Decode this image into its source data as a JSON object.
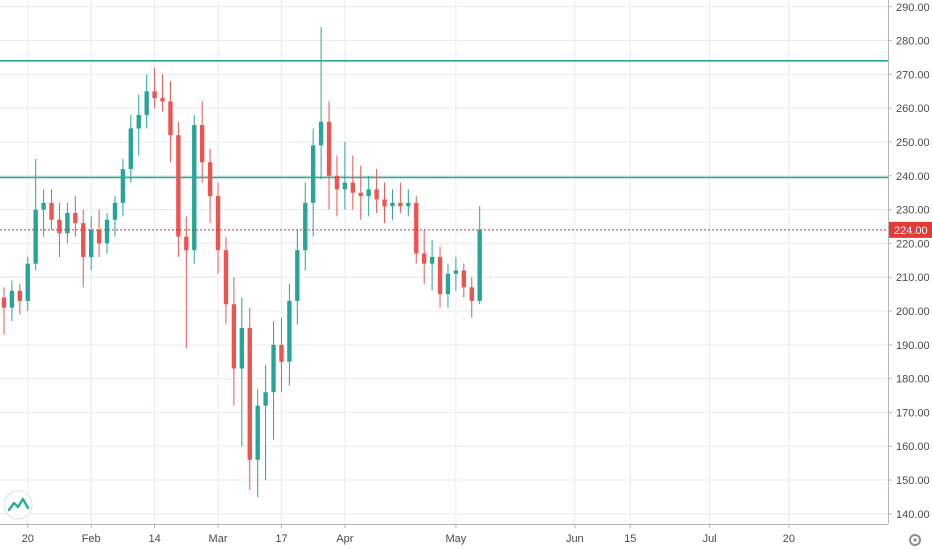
{
  "chart_data": {
    "type": "candlestick",
    "colors": {
      "up": "#26a69a",
      "down": "#ef5350",
      "grid": "#e6ecf1",
      "axis": "#b2b5be",
      "hline": "#2bab8f",
      "price_line": "#d32f2f",
      "price_label_bg": "#e53935",
      "logo_bg": "#ffffff",
      "logo_fg": "#2cad93"
    },
    "y_axis": {
      "range": [
        137,
        292
      ],
      "ticks": [
        "290.00",
        "280.00",
        "270.00",
        "260.00",
        "250.00",
        "240.00",
        "230.00",
        "220.00",
        "210.00",
        "200.00",
        "190.00",
        "180.00",
        "170.00",
        "160.00",
        "150.00",
        "140.00"
      ]
    },
    "x_axis": {
      "ticks": [
        {
          "label": "20",
          "index": 3
        },
        {
          "label": "Feb",
          "index": 11
        },
        {
          "label": "14",
          "index": 19
        },
        {
          "label": "Mar",
          "index": 27
        },
        {
          "label": "17",
          "index": 35
        },
        {
          "label": "Apr",
          "index": 43
        },
        {
          "label": "May",
          "index": 57
        },
        {
          "label": "Jun",
          "index": 72
        },
        {
          "label": "15",
          "index": 79
        },
        {
          "label": "Jul",
          "index": 89
        },
        {
          "label": "20",
          "index": 99
        }
      ],
      "slots": 112
    },
    "horizontal_lines": [
      274,
      239.5
    ],
    "last_price": {
      "value": 224.0,
      "label": "224.00"
    },
    "ohlc": [
      [
        204,
        207,
        193,
        201
      ],
      [
        201,
        209,
        197,
        206
      ],
      [
        206,
        208,
        199,
        203
      ],
      [
        203,
        216,
        200,
        214
      ],
      [
        214,
        245,
        212,
        230
      ],
      [
        230,
        236,
        222,
        232
      ],
      [
        232,
        236,
        224,
        227
      ],
      [
        227,
        232,
        216,
        223
      ],
      [
        223,
        232,
        220,
        229
      ],
      [
        229,
        234,
        222,
        226
      ],
      [
        226,
        230,
        207,
        216
      ],
      [
        216,
        228,
        212,
        224
      ],
      [
        224,
        230,
        216,
        220
      ],
      [
        220,
        229,
        217,
        227
      ],
      [
        227,
        234,
        222,
        232
      ],
      [
        232,
        245,
        228,
        242
      ],
      [
        242,
        258,
        238,
        254
      ],
      [
        254,
        264,
        246,
        258
      ],
      [
        258,
        270,
        254,
        265
      ],
      [
        265,
        272,
        260,
        263
      ],
      [
        263,
        270,
        259,
        262
      ],
      [
        262,
        268,
        244,
        252
      ],
      [
        252,
        256,
        216,
        222
      ],
      [
        222,
        228,
        189,
        218
      ],
      [
        218,
        258,
        214,
        255
      ],
      [
        255,
        262,
        238,
        244
      ],
      [
        244,
        248,
        226,
        234
      ],
      [
        234,
        238,
        211,
        218
      ],
      [
        218,
        222,
        196,
        202
      ],
      [
        202,
        210,
        172,
        183
      ],
      [
        183,
        204,
        160,
        195
      ],
      [
        195,
        201,
        147,
        156
      ],
      [
        156,
        177,
        145,
        172
      ],
      [
        172,
        184,
        150,
        176
      ],
      [
        176,
        197,
        162,
        190
      ],
      [
        190,
        198,
        176,
        185
      ],
      [
        185,
        208,
        178,
        203
      ],
      [
        203,
        224,
        196,
        218
      ],
      [
        218,
        238,
        212,
        232
      ],
      [
        232,
        254,
        222,
        249
      ],
      [
        249,
        284,
        239,
        256
      ],
      [
        256,
        262,
        230,
        240
      ],
      [
        240,
        246,
        228,
        236
      ],
      [
        236,
        250,
        230,
        238
      ],
      [
        238,
        246,
        230,
        235
      ],
      [
        235,
        243,
        227,
        234
      ],
      [
        234,
        240,
        228,
        236
      ],
      [
        236,
        242,
        229,
        233
      ],
      [
        233,
        238,
        226,
        231
      ],
      [
        231,
        236,
        227,
        232
      ],
      [
        232,
        238,
        229,
        231
      ],
      [
        231,
        236,
        228,
        232
      ],
      [
        232,
        234,
        214,
        217
      ],
      [
        217,
        224,
        208,
        214
      ],
      [
        214,
        221,
        206,
        216
      ],
      [
        216,
        219,
        201,
        205
      ],
      [
        205,
        214,
        201,
        211
      ],
      [
        211,
        216,
        206,
        212
      ],
      [
        212,
        214,
        204,
        207
      ],
      [
        207,
        210,
        198,
        203
      ],
      [
        203,
        231,
        202,
        224
      ]
    ]
  }
}
